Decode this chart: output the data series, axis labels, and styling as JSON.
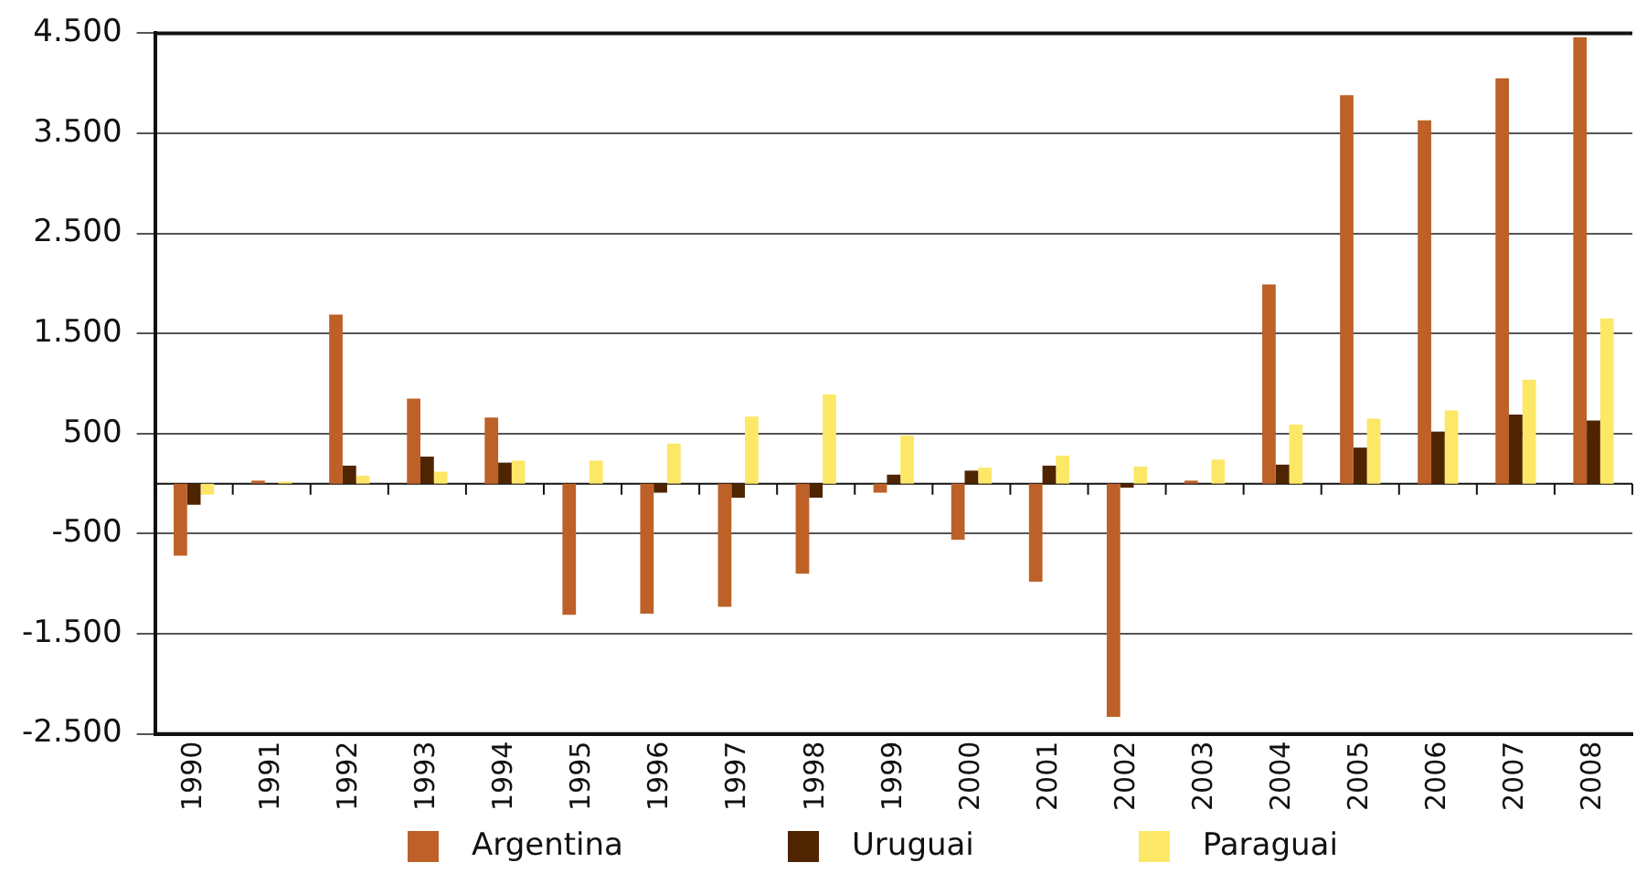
{
  "chart_data": {
    "type": "bar",
    "categories": [
      "1990",
      "1991",
      "1992",
      "1993",
      "1994",
      "1995",
      "1996",
      "1997",
      "1998",
      "1999",
      "2000",
      "2001",
      "2002",
      "2003",
      "2004",
      "2005",
      "2006",
      "2007",
      "2008"
    ],
    "series": [
      {
        "name": "Argentina",
        "color": "#bd6128",
        "values": [
          -720,
          30,
          1690,
          850,
          660,
          -1310,
          -1300,
          -1230,
          -900,
          -90,
          -560,
          -980,
          -2330,
          30,
          1990,
          3880,
          3630,
          4050,
          4460
        ]
      },
      {
        "name": "Uruguai",
        "color": "#4f2400",
        "values": [
          -210,
          0,
          180,
          270,
          210,
          0,
          -90,
          -140,
          -140,
          90,
          130,
          180,
          -40,
          0,
          190,
          360,
          520,
          690,
          630
        ]
      },
      {
        "name": "Paraguai",
        "color": "#fde767",
        "values": [
          -110,
          20,
          80,
          120,
          230,
          230,
          400,
          670,
          890,
          480,
          160,
          280,
          170,
          240,
          590,
          650,
          730,
          1040,
          1650
        ]
      }
    ],
    "ylim": [
      -2500,
      4500
    ],
    "yticks": [
      {
        "value": 4500,
        "label": "4.500"
      },
      {
        "value": 3500,
        "label": "3.500"
      },
      {
        "value": 2500,
        "label": "2.500"
      },
      {
        "value": 1500,
        "label": "1.500"
      },
      500,
      {
        "value": -500,
        "label": "-500"
      },
      {
        "value": -1500,
        "label": "-1.500"
      },
      {
        "value": -2500,
        "label": "-2.500"
      }
    ],
    "grid": "y",
    "legend": "bottom"
  }
}
